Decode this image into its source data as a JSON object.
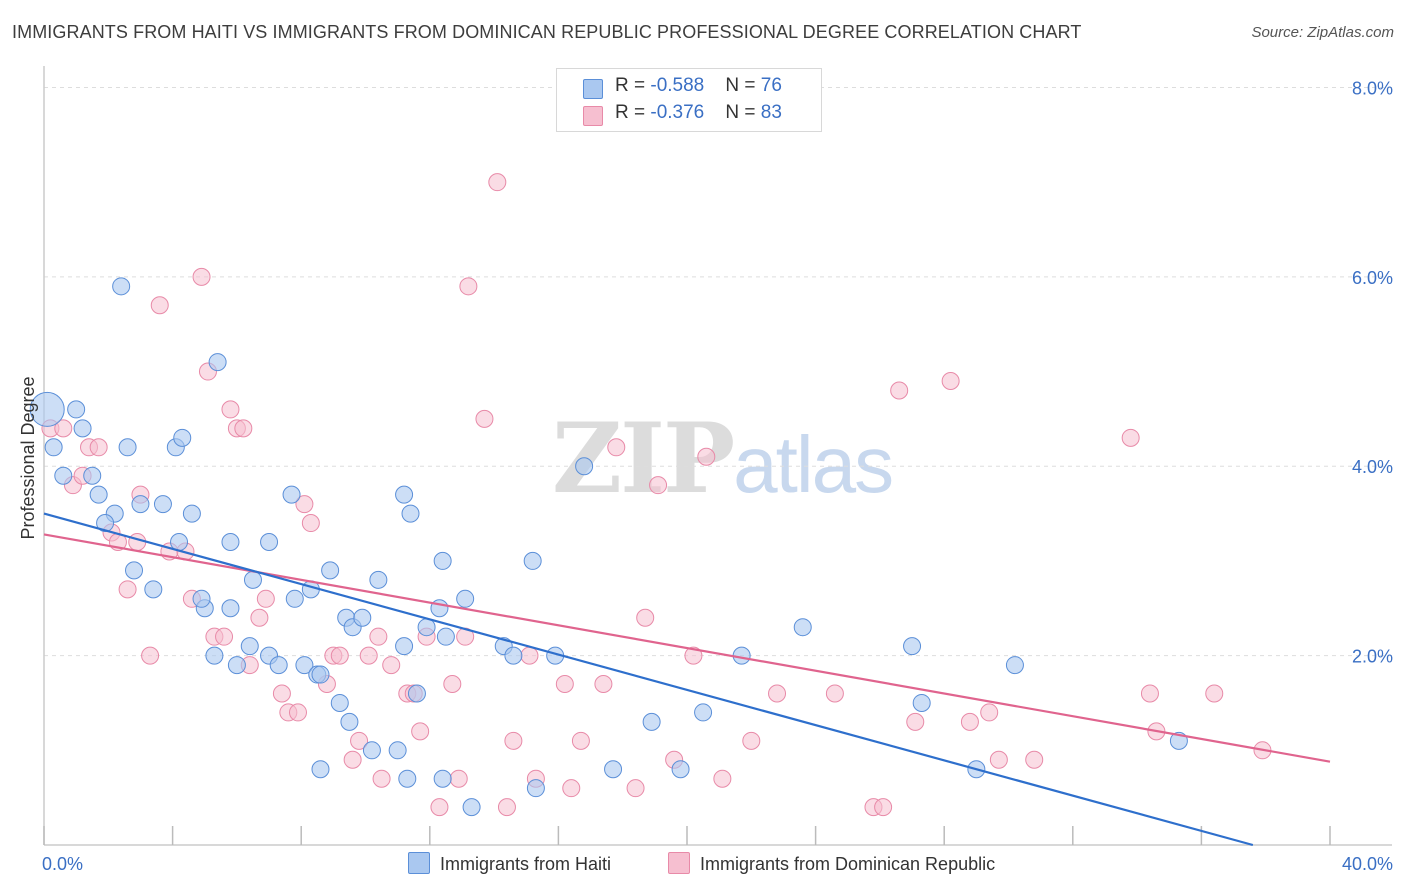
{
  "title": "IMMIGRANTS FROM HAITI VS IMMIGRANTS FROM DOMINICAN REPUBLIC PROFESSIONAL DEGREE CORRELATION CHART",
  "source": "Source: ZipAtlas.com",
  "watermark": {
    "zip": "ZIP",
    "atlas": "atlas"
  },
  "colors": {
    "haiti_fill": "#aac8f0",
    "haiti_stroke": "#5b8fd8",
    "haiti_line": "#2e6fcc",
    "dr_fill": "#f6bfd0",
    "dr_stroke": "#e88aa8",
    "dr_line": "#e0648e",
    "axis_label": "#3a6fc4",
    "grid": "#dddddd"
  },
  "stats": [
    {
      "r_label": "R = ",
      "r_value": "-0.588",
      "n_label": "N = ",
      "n_value": "76"
    },
    {
      "r_label": "R = ",
      "r_value": "-0.376",
      "n_label": "N = ",
      "n_value": "83"
    }
  ],
  "chart_data": {
    "type": "scatter",
    "title": "IMMIGRANTS FROM HAITI VS IMMIGRANTS FROM DOMINICAN REPUBLIC PROFESSIONAL DEGREE CORRELATION CHART",
    "xlabel": "",
    "ylabel": "Professional Degree",
    "xlim": [
      0,
      40
    ],
    "ylim": [
      0,
      8.1
    ],
    "x_tick_labels": [
      "0.0%",
      "40.0%"
    ],
    "y_ticks": [
      2,
      4,
      6,
      8
    ],
    "y_tick_labels": [
      "2.0%",
      "4.0%",
      "6.0%",
      "8.0%"
    ],
    "grid": true,
    "legend_position": "bottom",
    "series": [
      {
        "name": "Immigrants from Haiti",
        "r": -0.588,
        "n": 76,
        "trend": {
          "x": [
            0,
            37.6
          ],
          "y": [
            3.5,
            0
          ]
        },
        "points": [
          [
            0.1,
            4.6
          ],
          [
            0.3,
            4.2
          ],
          [
            1.0,
            4.6
          ],
          [
            1.2,
            4.4
          ],
          [
            0.6,
            3.9
          ],
          [
            1.5,
            3.9
          ],
          [
            1.7,
            3.7
          ],
          [
            2.2,
            3.5
          ],
          [
            1.9,
            3.4
          ],
          [
            2.6,
            4.2
          ],
          [
            2.4,
            5.9
          ],
          [
            3.0,
            3.6
          ],
          [
            3.7,
            3.6
          ],
          [
            4.2,
            3.2
          ],
          [
            4.1,
            4.2
          ],
          [
            4.3,
            4.3
          ],
          [
            4.6,
            3.5
          ],
          [
            5.4,
            5.1
          ],
          [
            5.8,
            3.2
          ],
          [
            3.4,
            2.7
          ],
          [
            2.8,
            2.9
          ],
          [
            5.0,
            2.5
          ],
          [
            4.9,
            2.6
          ],
          [
            5.3,
            2.0
          ],
          [
            5.8,
            2.5
          ],
          [
            6.5,
            2.8
          ],
          [
            7.0,
            3.2
          ],
          [
            7.7,
            3.7
          ],
          [
            7.8,
            2.6
          ],
          [
            8.3,
            2.7
          ],
          [
            8.9,
            2.9
          ],
          [
            6.4,
            2.1
          ],
          [
            7.0,
            2.0
          ],
          [
            6.0,
            1.9
          ],
          [
            7.3,
            1.9
          ],
          [
            8.1,
            1.9
          ],
          [
            8.5,
            1.8
          ],
          [
            8.6,
            1.8
          ],
          [
            9.4,
            2.4
          ],
          [
            9.6,
            2.3
          ],
          [
            9.9,
            2.4
          ],
          [
            10.4,
            2.8
          ],
          [
            11.2,
            2.1
          ],
          [
            11.6,
            1.6
          ],
          [
            11.2,
            3.7
          ],
          [
            11.4,
            3.5
          ],
          [
            12.4,
            3.0
          ],
          [
            12.3,
            2.5
          ],
          [
            13.1,
            2.6
          ],
          [
            11.9,
            2.3
          ],
          [
            12.5,
            2.2
          ],
          [
            14.3,
            2.1
          ],
          [
            14.6,
            2.0
          ],
          [
            15.2,
            3.0
          ],
          [
            15.9,
            2.0
          ],
          [
            16.8,
            4.0
          ],
          [
            9.2,
            1.5
          ],
          [
            9.5,
            1.3
          ],
          [
            10.2,
            1.0
          ],
          [
            11.0,
            1.0
          ],
          [
            8.6,
            0.8
          ],
          [
            11.3,
            0.7
          ],
          [
            12.4,
            0.7
          ],
          [
            13.3,
            0.4
          ],
          [
            15.3,
            0.6
          ],
          [
            17.7,
            0.8
          ],
          [
            18.9,
            1.3
          ],
          [
            19.8,
            0.8
          ],
          [
            20.5,
            1.4
          ],
          [
            21.7,
            2.0
          ],
          [
            23.6,
            2.3
          ],
          [
            27.0,
            2.1
          ],
          [
            27.3,
            1.5
          ],
          [
            29.0,
            0.8
          ],
          [
            30.2,
            1.9
          ],
          [
            35.3,
            1.1
          ]
        ]
      },
      {
        "name": "Immigrants from Dominican Republic",
        "r": -0.376,
        "n": 83,
        "trend": {
          "x": [
            0,
            40
          ],
          "y": [
            3.28,
            0.88
          ]
        },
        "points": [
          [
            0.2,
            4.4
          ],
          [
            0.6,
            4.4
          ],
          [
            0.9,
            3.8
          ],
          [
            1.2,
            3.9
          ],
          [
            1.4,
            4.2
          ],
          [
            1.7,
            4.2
          ],
          [
            2.1,
            3.3
          ],
          [
            2.3,
            3.2
          ],
          [
            2.6,
            2.7
          ],
          [
            2.9,
            3.2
          ],
          [
            3.0,
            3.7
          ],
          [
            3.3,
            2.0
          ],
          [
            3.6,
            5.7
          ],
          [
            3.9,
            3.1
          ],
          [
            4.4,
            3.1
          ],
          [
            4.6,
            2.6
          ],
          [
            4.9,
            6.0
          ],
          [
            5.1,
            5.0
          ],
          [
            5.3,
            2.2
          ],
          [
            5.6,
            2.2
          ],
          [
            5.8,
            4.6
          ],
          [
            6.0,
            4.4
          ],
          [
            6.2,
            4.4
          ],
          [
            6.4,
            1.9
          ],
          [
            6.7,
            2.4
          ],
          [
            6.9,
            2.6
          ],
          [
            7.4,
            1.6
          ],
          [
            7.6,
            1.4
          ],
          [
            7.9,
            1.4
          ],
          [
            8.1,
            3.6
          ],
          [
            8.3,
            3.4
          ],
          [
            8.8,
            1.7
          ],
          [
            9.0,
            2.0
          ],
          [
            9.2,
            2.0
          ],
          [
            9.6,
            0.9
          ],
          [
            9.8,
            1.1
          ],
          [
            10.1,
            2.0
          ],
          [
            10.4,
            2.2
          ],
          [
            10.8,
            1.9
          ],
          [
            10.5,
            0.7
          ],
          [
            11.3,
            1.6
          ],
          [
            11.5,
            1.6
          ],
          [
            11.7,
            1.2
          ],
          [
            11.9,
            2.2
          ],
          [
            12.3,
            0.4
          ],
          [
            12.7,
            1.7
          ],
          [
            12.9,
            0.7
          ],
          [
            13.1,
            2.2
          ],
          [
            13.2,
            5.9
          ],
          [
            13.7,
            4.5
          ],
          [
            14.1,
            7.0
          ],
          [
            14.4,
            0.4
          ],
          [
            14.6,
            1.1
          ],
          [
            15.1,
            2.0
          ],
          [
            15.3,
            0.7
          ],
          [
            16.2,
            1.7
          ],
          [
            16.4,
            0.6
          ],
          [
            16.7,
            1.1
          ],
          [
            17.4,
            1.7
          ],
          [
            17.8,
            4.2
          ],
          [
            18.4,
            0.6
          ],
          [
            18.7,
            2.4
          ],
          [
            19.1,
            3.8
          ],
          [
            19.6,
            0.9
          ],
          [
            20.2,
            2.0
          ],
          [
            20.6,
            4.1
          ],
          [
            21.1,
            0.7
          ],
          [
            22.0,
            1.1
          ],
          [
            22.8,
            1.6
          ],
          [
            24.6,
            1.6
          ],
          [
            25.8,
            0.4
          ],
          [
            26.1,
            0.4
          ],
          [
            26.6,
            4.8
          ],
          [
            27.1,
            1.3
          ],
          [
            28.2,
            4.9
          ],
          [
            28.8,
            1.3
          ],
          [
            29.4,
            1.4
          ],
          [
            29.7,
            0.9
          ],
          [
            30.8,
            0.9
          ],
          [
            33.8,
            4.3
          ],
          [
            34.4,
            1.6
          ],
          [
            34.6,
            1.2
          ],
          [
            36.4,
            1.6
          ],
          [
            37.9,
            1.0
          ]
        ]
      }
    ]
  }
}
